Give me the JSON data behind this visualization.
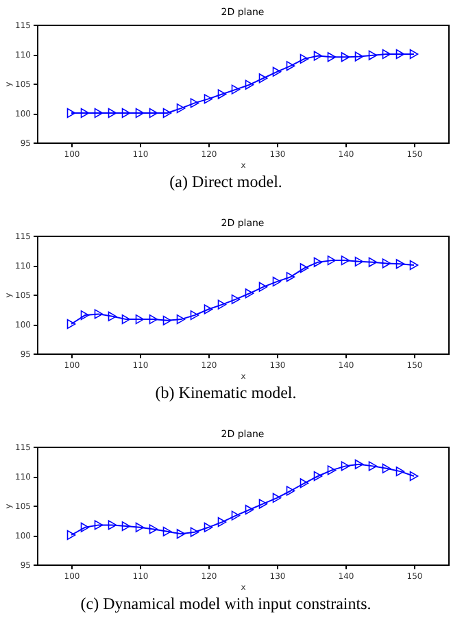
{
  "chart_data": [
    {
      "type": "line",
      "title": "2D plane",
      "xlabel": "x",
      "ylabel": "y",
      "annotations": [
        "(a) Direct model."
      ],
      "marker": "triangle",
      "line_style": "solid",
      "grid": false,
      "xlim": [
        95,
        155
      ],
      "ylim": [
        95,
        115
      ],
      "xticks": [
        100,
        110,
        120,
        130,
        140,
        150
      ],
      "yticks": [
        95,
        100,
        105,
        110,
        115
      ],
      "x": [
        100,
        102,
        104,
        106,
        108,
        110,
        112,
        114,
        116,
        118,
        120,
        122,
        124,
        126,
        128,
        130,
        132,
        134,
        136,
        138,
        140,
        142,
        144,
        146,
        148,
        150
      ],
      "series": [
        {
          "color": "#0000ff",
          "values": [
            100,
            100,
            100,
            100,
            100,
            100,
            100,
            100,
            100.8,
            101.7,
            102.4,
            103.2,
            104,
            104.8,
            105.9,
            107,
            108,
            109.2,
            109.7,
            109.5,
            109.5,
            109.6,
            109.8,
            110,
            110,
            110
          ]
        }
      ]
    },
    {
      "type": "line",
      "title": "2D plane",
      "xlabel": "x",
      "ylabel": "y",
      "annotations": [
        "(b) Kinematic model."
      ],
      "marker": "triangle",
      "line_style": "solid",
      "grid": false,
      "xlim": [
        95,
        155
      ],
      "ylim": [
        95,
        115
      ],
      "xticks": [
        100,
        110,
        120,
        130,
        140,
        150
      ],
      "yticks": [
        95,
        100,
        105,
        110,
        115
      ],
      "x": [
        100,
        102,
        104,
        106,
        108,
        110,
        112,
        114,
        116,
        118,
        120,
        122,
        124,
        126,
        128,
        130,
        132,
        134,
        136,
        138,
        140,
        142,
        144,
        146,
        148,
        150
      ],
      "series": [
        {
          "color": "#0000ff",
          "values": [
            100,
            101.5,
            101.7,
            101.3,
            100.8,
            100.8,
            100.8,
            100.6,
            100.8,
            101.5,
            102.5,
            103.3,
            104.2,
            105.2,
            106.3,
            107.2,
            108,
            109.5,
            110.5,
            110.8,
            110.8,
            110.6,
            110.5,
            110.3,
            110.2,
            110
          ]
        }
      ]
    },
    {
      "type": "line",
      "title": "2D plane",
      "xlabel": "x",
      "ylabel": "y",
      "annotations": [
        "(c) Dynamical model with input constraints."
      ],
      "marker": "triangle",
      "line_style": "solid",
      "grid": false,
      "xlim": [
        95,
        155
      ],
      "ylim": [
        95,
        115
      ],
      "xticks": [
        100,
        110,
        120,
        130,
        140,
        150
      ],
      "yticks": [
        95,
        100,
        105,
        110,
        115
      ],
      "x": [
        100,
        102,
        104,
        106,
        108,
        110,
        112,
        114,
        116,
        118,
        120,
        122,
        124,
        126,
        128,
        130,
        132,
        134,
        136,
        138,
        140,
        142,
        144,
        146,
        148,
        150
      ],
      "series": [
        {
          "color": "#0000ff",
          "values": [
            100,
            101.3,
            101.7,
            101.7,
            101.5,
            101.3,
            101,
            100.6,
            100.2,
            100.5,
            101.3,
            102.2,
            103.3,
            104.3,
            105.3,
            106.3,
            107.5,
            108.8,
            110,
            111,
            111.7,
            112,
            111.7,
            111.3,
            110.8,
            110
          ]
        }
      ]
    }
  ]
}
